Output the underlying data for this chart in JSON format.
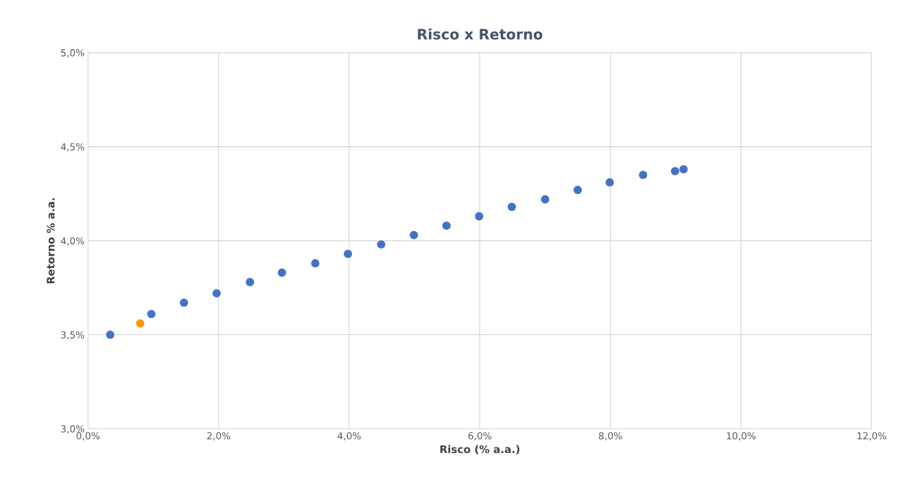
{
  "chart_data": {
    "type": "scatter",
    "title": "Risco x Retorno",
    "xlabel": "Risco (% a.a.)",
    "ylabel": "Retorno % a.a.",
    "series": [
      {
        "color": "#4472c4",
        "x": [
          0.34,
          0.97,
          1.47,
          1.97,
          2.48,
          2.97,
          3.48,
          3.98,
          4.49,
          4.99,
          5.49,
          5.99,
          6.49,
          7.0,
          7.5,
          7.99,
          8.5,
          8.99,
          9.12
        ],
        "values": [
          3.5,
          3.61,
          3.67,
          3.72,
          3.78,
          3.83,
          3.88,
          3.93,
          3.98,
          4.03,
          4.08,
          4.13,
          4.18,
          4.22,
          4.27,
          4.31,
          4.35,
          4.37,
          4.38
        ]
      },
      {
        "color": "#ff9900",
        "x": [
          0.8
        ],
        "values": [
          3.56
        ]
      }
    ],
    "xlim": [
      0,
      12
    ],
    "ylim": [
      3,
      5
    ],
    "xticks": [
      {
        "value": 0,
        "label": "0,0%"
      },
      {
        "value": 2,
        "label": "2,0%"
      },
      {
        "value": 4,
        "label": "4,0%"
      },
      {
        "value": 6,
        "label": "6,0%"
      },
      {
        "value": 8,
        "label": "8,0%"
      },
      {
        "value": 10,
        "label": "10,0%"
      },
      {
        "value": 12,
        "label": "12,0%"
      }
    ],
    "yticks": [
      {
        "value": 3,
        "label": "3,0%"
      },
      {
        "value": 3.5,
        "label": "3,5%"
      },
      {
        "value": 4,
        "label": "4,0%"
      },
      {
        "value": 4.5,
        "label": "4,5%"
      },
      {
        "value": 5,
        "label": "5,0%"
      }
    ],
    "grid": true,
    "marker": "circle"
  }
}
